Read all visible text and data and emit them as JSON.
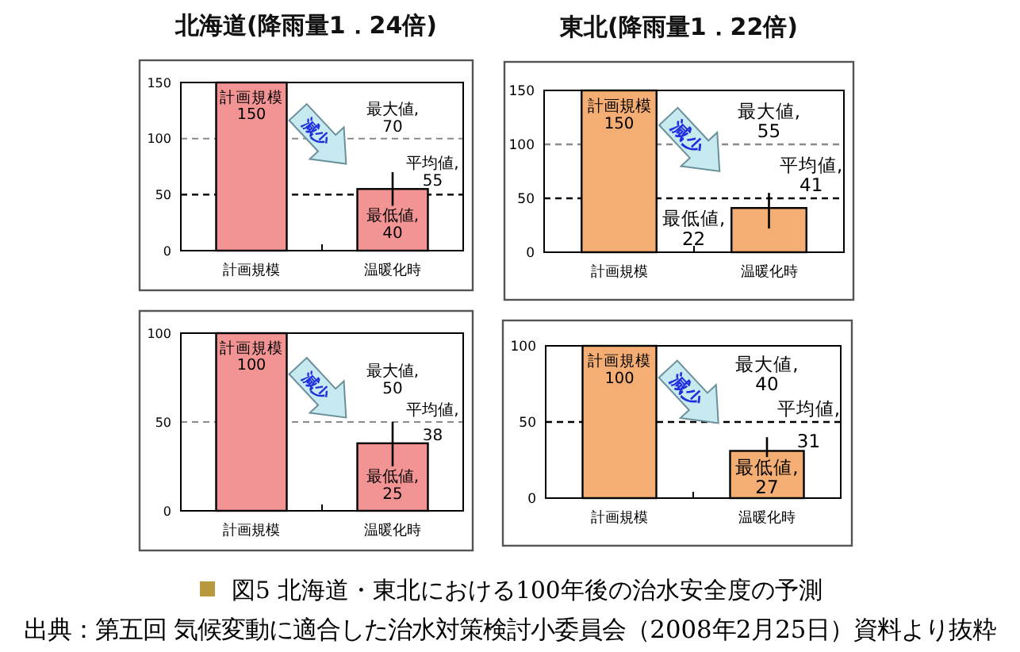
{
  "chart_data": [
    {
      "type": "bar",
      "title": "北海道(降雨量1．24倍)",
      "categories": [
        "計画規模",
        "温暖化時"
      ],
      "values": [
        150,
        55
      ],
      "color": "#f29494",
      "errors": [
        null,
        [
          40,
          70
        ]
      ],
      "value_labels": [
        "計画規模 150",
        "平均値, 55"
      ],
      "annotations": [
        "減少",
        {
          "text": "最大値, 70",
          "x": "温暖化時",
          "y": 70
        },
        {
          "text": "最低値, 40",
          "x": "温暖化時",
          "y": 40
        }
      ],
      "ylim": [
        0,
        150
      ],
      "yticks": [
        0,
        50,
        100,
        150
      ],
      "grid": "y",
      "ref_lines": [
        {
          "axis": "y",
          "value": 50,
          "color": "#000000",
          "line_style": "dashed"
        }
      ]
    },
    {
      "type": "bar",
      "title": "東北(降雨量1．22倍)",
      "categories": [
        "計画規模",
        "温暖化時"
      ],
      "values": [
        150,
        41
      ],
      "color": "#f4ad72",
      "errors": [
        null,
        [
          22,
          55
        ]
      ],
      "value_labels": [
        "計画規模 150",
        "平均値, 41"
      ],
      "annotations": [
        "減少",
        {
          "text": "最大値, 55",
          "x": "温暖化時",
          "y": 55
        },
        {
          "text": "最低値, 22",
          "x": "温暖化時",
          "y": 22
        }
      ],
      "ylim": [
        0,
        150
      ],
      "yticks": [
        0,
        50,
        100,
        150
      ],
      "ref_lines": [
        {
          "axis": "y",
          "value": 100,
          "color": "#8a8a8a",
          "line_style": "dashed"
        },
        {
          "axis": "y",
          "value": 50,
          "color": "#000000",
          "line_style": "dashed"
        }
      ]
    },
    {
      "type": "bar",
      "categories": [
        "計画規模",
        "温暖化時"
      ],
      "values": [
        100,
        38
      ],
      "color": "#f29494",
      "errors": [
        null,
        [
          25,
          50
        ]
      ],
      "value_labels": [
        "計画規模 100",
        "平均値, 38"
      ],
      "annotations": [
        "減少",
        {
          "text": "最大値, 50",
          "x": "温暖化時",
          "y": 50
        },
        {
          "text": "最低値, 25",
          "x": "温暖化時",
          "y": 25
        }
      ],
      "ylim": [
        0,
        100
      ],
      "yticks": [
        0,
        50,
        100
      ],
      "grid": "y"
    },
    {
      "type": "bar",
      "categories": [
        "計画規模",
        "温暖化時"
      ],
      "values": [
        100,
        31
      ],
      "color": "#f4ad72",
      "errors": [
        null,
        [
          27,
          40
        ]
      ],
      "value_labels": [
        "計画規模 100",
        "平均値, 31"
      ],
      "annotations": [
        "減少",
        {
          "text": "最大値, 40",
          "x": "温暖化時",
          "y": 40
        },
        {
          "text": "最低値, 27",
          "x": "温暖化時",
          "y": 27
        },
        "図5 北海道・東北における100年後の治水安全度の予測",
        "出典：第五回 気候変動に適合した治水対策検討小委員会（2008年2月25日）資料より抜粋"
      ],
      "ylim": [
        0,
        100
      ],
      "yticks": [
        0,
        50,
        100
      ],
      "ref_lines": [
        {
          "axis": "y",
          "value": 50,
          "color": "#000000",
          "line_style": "dashed"
        }
      ]
    }
  ]
}
